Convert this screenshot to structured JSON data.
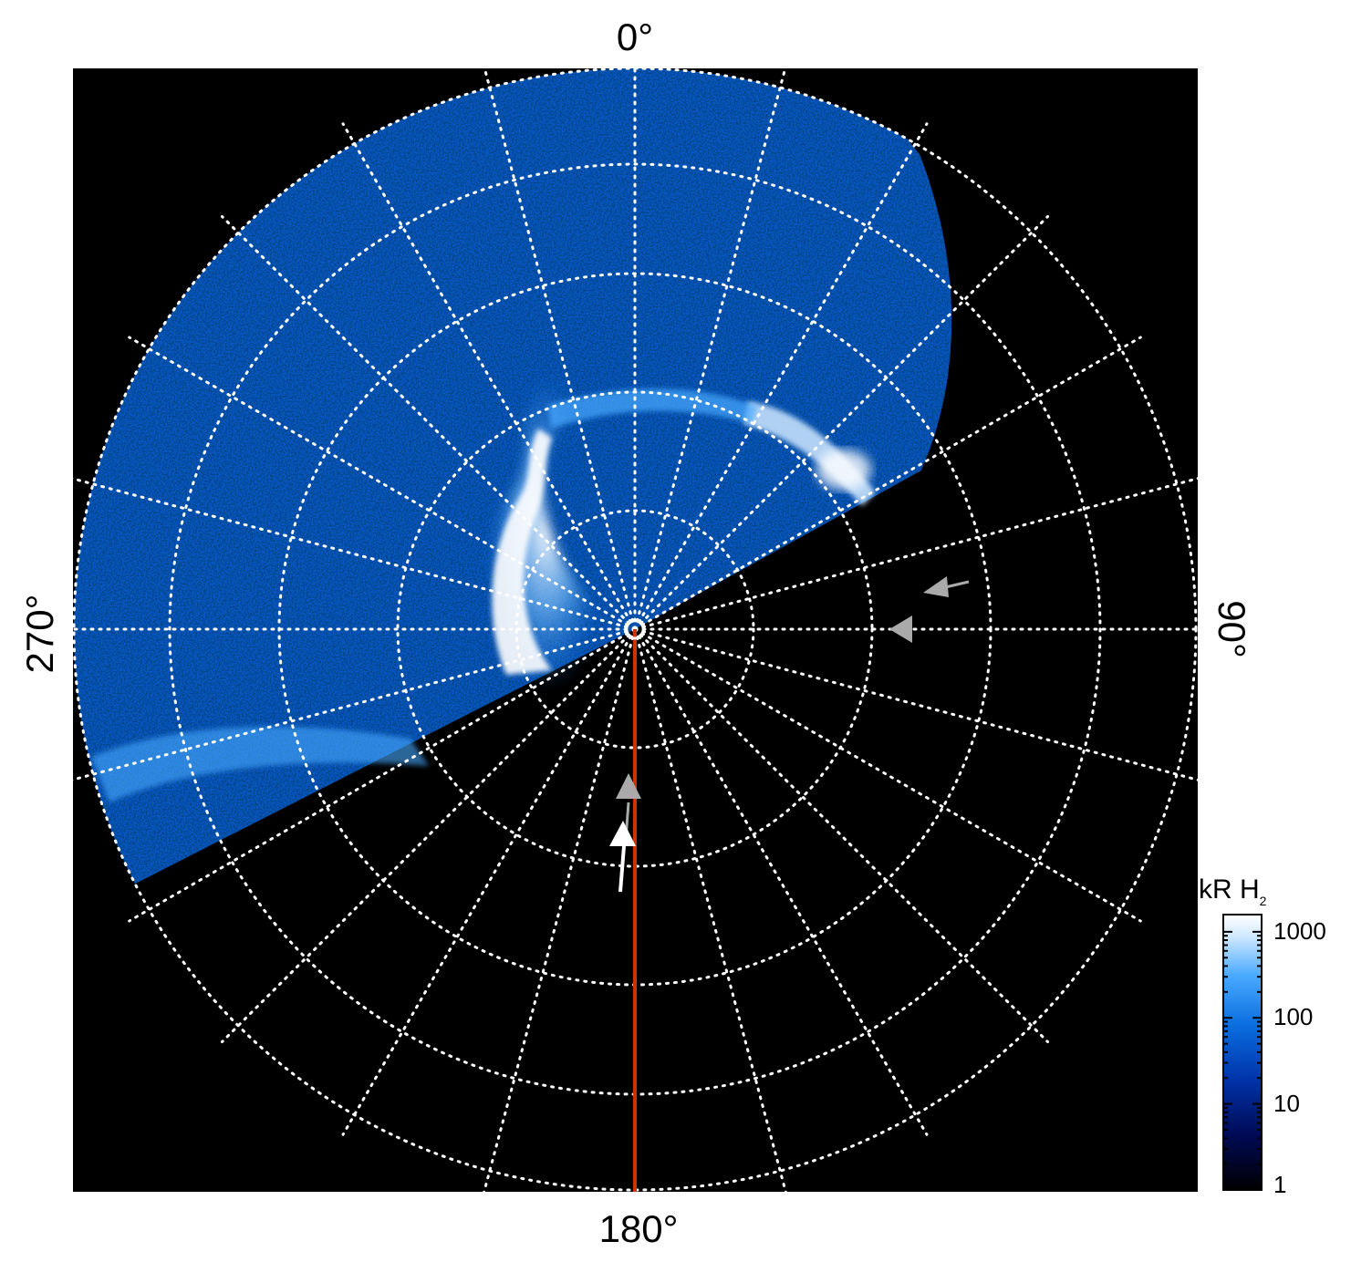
{
  "polar_plot": {
    "labels": {
      "top": "0°",
      "right": "90°",
      "bottom": "180°",
      "left": "270°"
    },
    "grid": {
      "visible": true,
      "style": "dotted",
      "color": "#ffffff"
    },
    "background": "#000000",
    "reference_line_color": "#cc3300"
  },
  "colorbar": {
    "title_main": "kR H",
    "title_sub": "2",
    "ticks": [
      "1000",
      "100",
      "10",
      "1"
    ],
    "scale": "log",
    "colors": [
      "#000000",
      "#000a55",
      "#0033aa",
      "#0a6fe0",
      "#4aaaff",
      "#cfe8ff",
      "#ffffff"
    ]
  },
  "annotations": {
    "arrow_colors": {
      "gray": "#aaaaaa",
      "white": "#ffffff"
    }
  }
}
